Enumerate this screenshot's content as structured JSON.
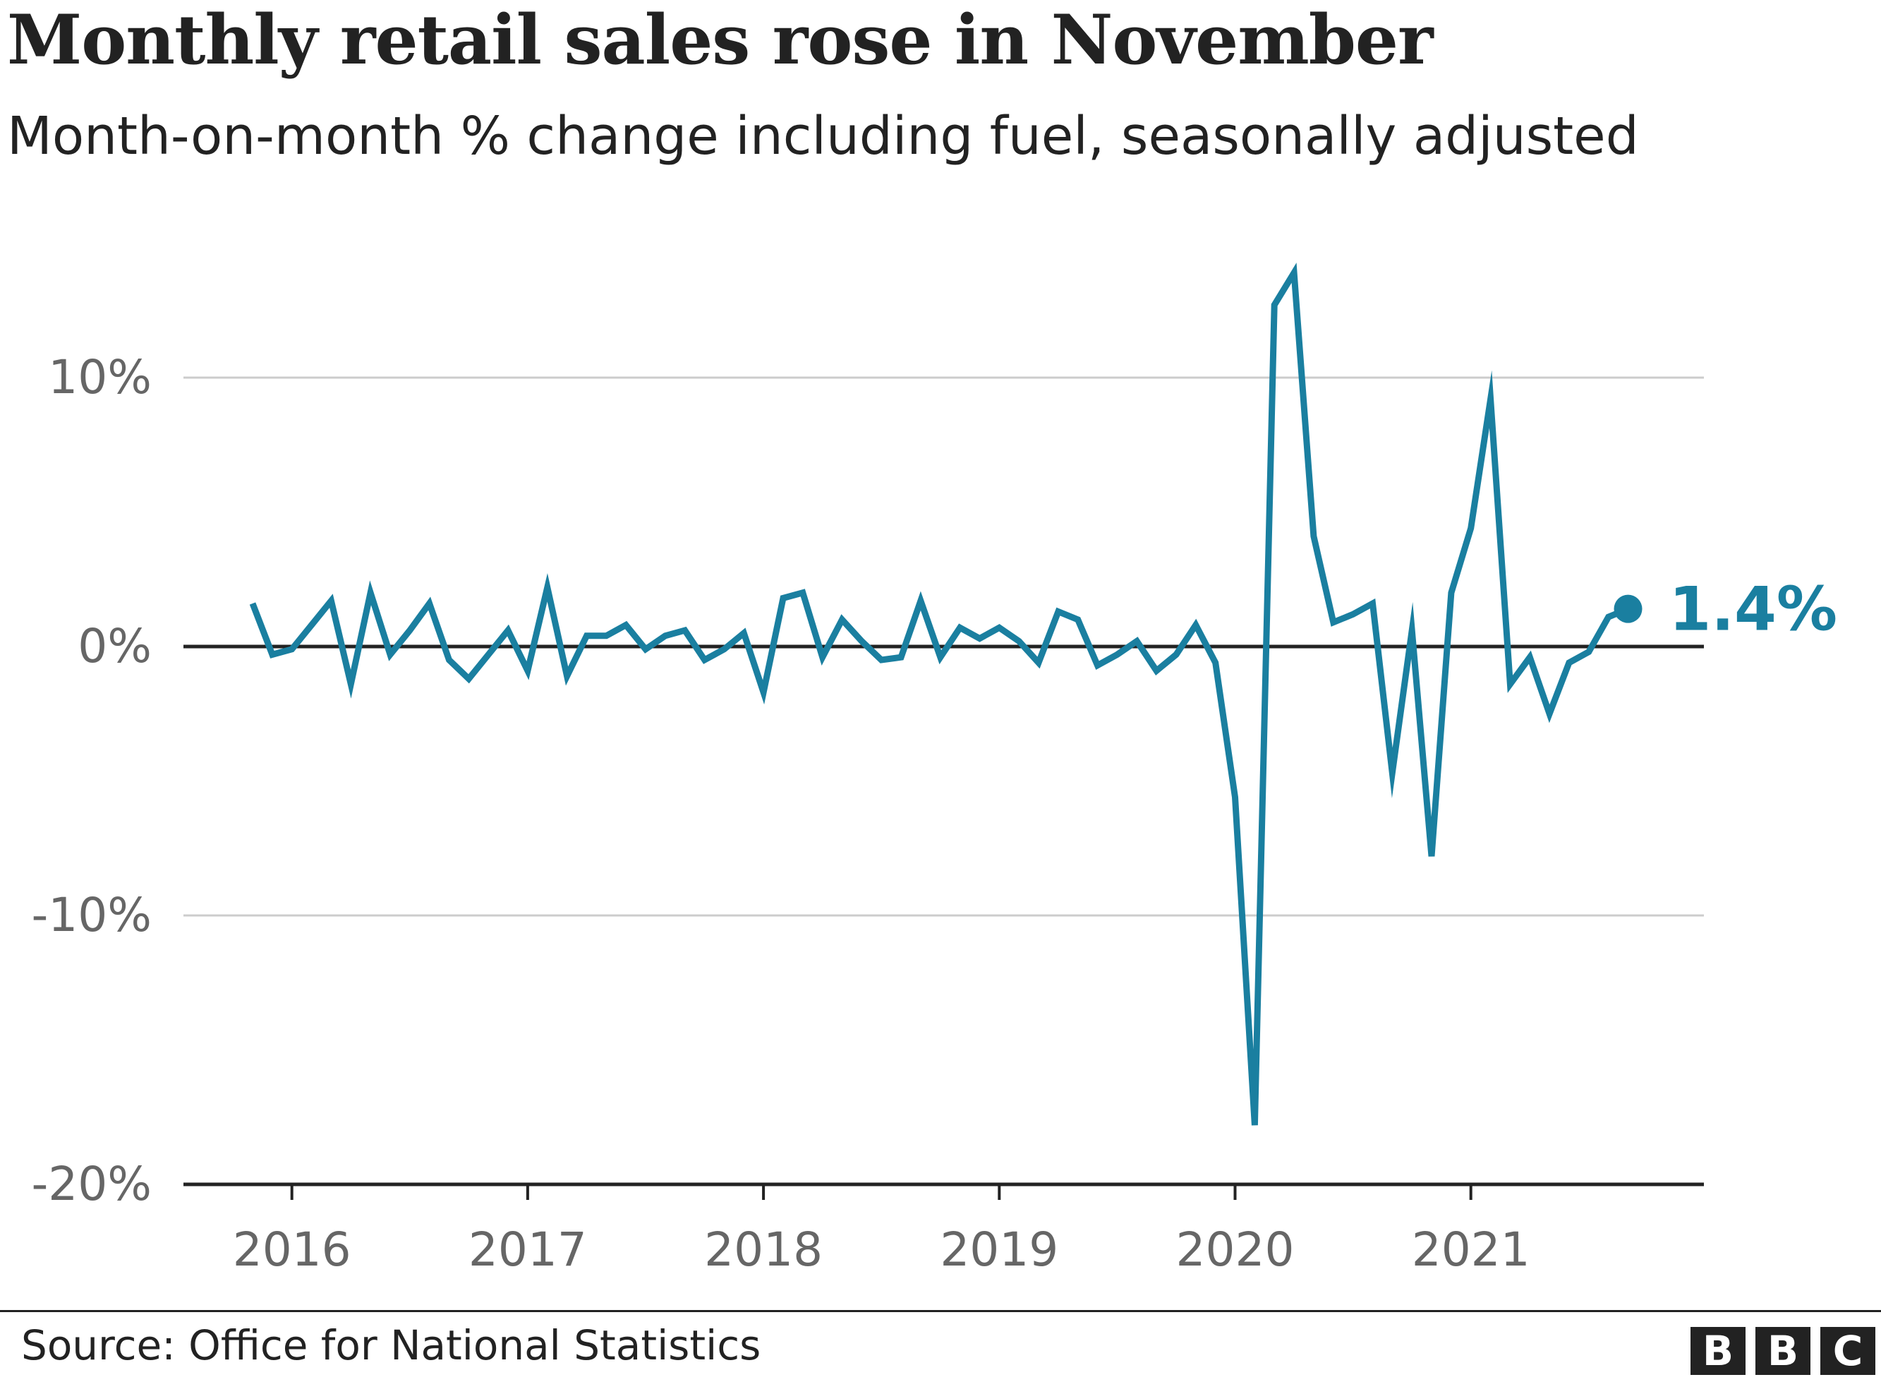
{
  "chart_data": {
    "type": "line",
    "title": "Monthly retail sales rose in November",
    "subtitle": "Month-on-month % change including fuel, seasonally adjusted",
    "ylabel": "",
    "xlabel": "",
    "ylim": [
      -20,
      15
    ],
    "y_ticks": [
      {
        "value": 10,
        "label": "10%"
      },
      {
        "value": 0,
        "label": "0%"
      },
      {
        "value": -10,
        "label": "-10%"
      },
      {
        "value": -20,
        "label": "-20%"
      }
    ],
    "x_ticks": [
      "2016",
      "2017",
      "2018",
      "2019",
      "2020",
      "2021"
    ],
    "x_range": [
      "2015-11",
      "2021-11"
    ],
    "grid": true,
    "series": [
      {
        "color": "#1a7fa0",
        "points": [
          {
            "x": "2015-11",
            "y": 1.6
          },
          {
            "x": "2015-12",
            "y": -0.3
          },
          {
            "x": "2016-01",
            "y": -0.1
          },
          {
            "x": "2016-02",
            "y": 0.8
          },
          {
            "x": "2016-03",
            "y": 1.7
          },
          {
            "x": "2016-04",
            "y": -1.4
          },
          {
            "x": "2016-05",
            "y": 2.0
          },
          {
            "x": "2016-06",
            "y": -0.3
          },
          {
            "x": "2016-07",
            "y": 0.6
          },
          {
            "x": "2016-08",
            "y": 1.6
          },
          {
            "x": "2016-09",
            "y": -0.5
          },
          {
            "x": "2016-10",
            "y": -1.2
          },
          {
            "x": "2016-11",
            "y": -0.3
          },
          {
            "x": "2016-12",
            "y": 0.6
          },
          {
            "x": "2017-01",
            "y": -0.9
          },
          {
            "x": "2017-02",
            "y": 2.2
          },
          {
            "x": "2017-03",
            "y": -1.1
          },
          {
            "x": "2017-04",
            "y": 0.4
          },
          {
            "x": "2017-05",
            "y": 0.4
          },
          {
            "x": "2017-06",
            "y": 0.8
          },
          {
            "x": "2017-07",
            "y": -0.1
          },
          {
            "x": "2017-08",
            "y": 0.4
          },
          {
            "x": "2017-09",
            "y": 0.6
          },
          {
            "x": "2017-10",
            "y": -0.5
          },
          {
            "x": "2017-11",
            "y": -0.1
          },
          {
            "x": "2017-12",
            "y": 0.5
          },
          {
            "x": "2018-01",
            "y": -1.7
          },
          {
            "x": "2018-02",
            "y": 1.8
          },
          {
            "x": "2018-03",
            "y": 2.0
          },
          {
            "x": "2018-04",
            "y": -0.4
          },
          {
            "x": "2018-05",
            "y": 1.0
          },
          {
            "x": "2018-06",
            "y": 0.2
          },
          {
            "x": "2018-07",
            "y": -0.5
          },
          {
            "x": "2018-08",
            "y": -0.4
          },
          {
            "x": "2018-09",
            "y": 1.7
          },
          {
            "x": "2018-10",
            "y": -0.4
          },
          {
            "x": "2018-11",
            "y": 0.7
          },
          {
            "x": "2018-12",
            "y": 0.3
          },
          {
            "x": "2019-01",
            "y": 0.7
          },
          {
            "x": "2019-02",
            "y": 0.2
          },
          {
            "x": "2019-03",
            "y": -0.6
          },
          {
            "x": "2019-04",
            "y": 1.3
          },
          {
            "x": "2019-05",
            "y": 1.0
          },
          {
            "x": "2019-06",
            "y": -0.7
          },
          {
            "x": "2019-07",
            "y": -0.3
          },
          {
            "x": "2019-08",
            "y": 0.2
          },
          {
            "x": "2019-09",
            "y": -0.9
          },
          {
            "x": "2019-10",
            "y": -0.3
          },
          {
            "x": "2019-11",
            "y": 0.8
          },
          {
            "x": "2019-12",
            "y": -0.6
          },
          {
            "x": "2020-01",
            "y": -5.6
          },
          {
            "x": "2020-02",
            "y": -17.8
          },
          {
            "x": "2020-03",
            "y": 12.7
          },
          {
            "x": "2020-04",
            "y": 13.9
          },
          {
            "x": "2020-05",
            "y": 4.1
          },
          {
            "x": "2020-06",
            "y": 0.9
          },
          {
            "x": "2020-07",
            "y": 1.2
          },
          {
            "x": "2020-08",
            "y": 1.6
          },
          {
            "x": "2020-09",
            "y": -4.7
          },
          {
            "x": "2020-10",
            "y": 0.6
          },
          {
            "x": "2020-11",
            "y": -7.8
          },
          {
            "x": "2020-12",
            "y": 2.0
          },
          {
            "x": "2021-01",
            "y": 4.4
          },
          {
            "x": "2021-02",
            "y": 9.2
          },
          {
            "x": "2021-03",
            "y": -1.4
          },
          {
            "x": "2021-04",
            "y": -0.4
          },
          {
            "x": "2021-05",
            "y": -2.5
          },
          {
            "x": "2021-06",
            "y": -0.6
          },
          {
            "x": "2021-07",
            "y": -0.2
          },
          {
            "x": "2021-08",
            "y": 1.1
          },
          {
            "x": "2021-09",
            "y": 1.4
          }
        ]
      }
    ],
    "annotations": [
      {
        "label": "1.4%",
        "point_index": 70
      }
    ],
    "zero_line_color": "#222222",
    "grid_color": "#cccccc"
  },
  "footer": {
    "source": "Source: Office for National Statistics",
    "logo_letters": [
      "B",
      "B",
      "C"
    ]
  }
}
